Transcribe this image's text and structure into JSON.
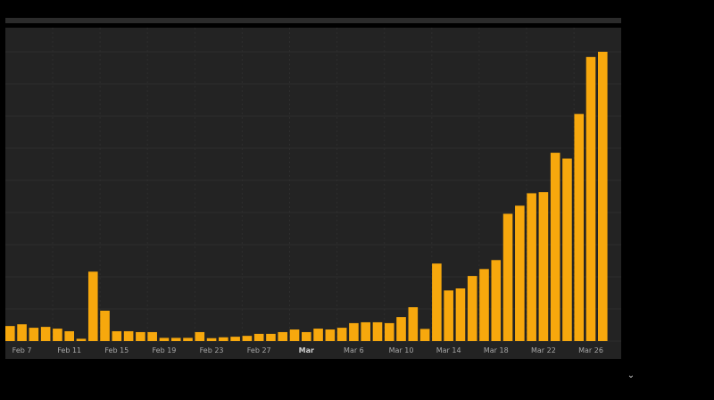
{
  "chart_data": {
    "type": "bar",
    "colors": {
      "bar": "#f7a80d",
      "background": "#232323",
      "grid": "#2e2e2e",
      "tick_text": "#a8a8a8"
    },
    "grid": true,
    "ylim": [
      0,
      100
    ],
    "x": [
      "Feb 6",
      "Feb 7",
      "Feb 8",
      "Feb 9",
      "Feb 10",
      "Feb 11",
      "Feb 12",
      "Feb 13",
      "Feb 14",
      "Feb 15",
      "Feb 16",
      "Feb 17",
      "Feb 18",
      "Feb 19",
      "Feb 20",
      "Feb 21",
      "Feb 22",
      "Feb 23",
      "Feb 24",
      "Feb 25",
      "Feb 26",
      "Feb 27",
      "Feb 28",
      "Feb 29",
      "Mar 1",
      "Mar 2",
      "Mar 3",
      "Mar 4",
      "Mar 5",
      "Mar 6",
      "Mar 7",
      "Mar 8",
      "Mar 9",
      "Mar 10",
      "Mar 11",
      "Mar 12",
      "Mar 13",
      "Mar 14",
      "Mar 15",
      "Mar 16",
      "Mar 17",
      "Mar 18",
      "Mar 19",
      "Mar 20",
      "Mar 21",
      "Mar 22",
      "Mar 23",
      "Mar 24",
      "Mar 25",
      "Mar 26",
      "Mar 27"
    ],
    "values": [
      5.2,
      5.8,
      4.6,
      4.9,
      4.3,
      3.4,
      0.8,
      24.0,
      10.5,
      3.4,
      3.4,
      3.1,
      3.1,
      1.1,
      1.1,
      1.1,
      3.1,
      1.0,
      1.3,
      1.5,
      1.8,
      2.5,
      2.5,
      3.1,
      4.0,
      3.1,
      4.3,
      4.0,
      4.6,
      6.2,
      6.5,
      6.5,
      6.2,
      8.3,
      11.7,
      4.2,
      26.8,
      17.5,
      18.2,
      22.5,
      24.9,
      28.0,
      44.0,
      46.8,
      51.1,
      51.5,
      65.1,
      63.1,
      78.5,
      98.2,
      100.0
    ],
    "tick_labels": [
      {
        "label": "Feb 7",
        "index": 1
      },
      {
        "label": "Feb 11",
        "index": 5
      },
      {
        "label": "Feb 15",
        "index": 9
      },
      {
        "label": "Feb 19",
        "index": 13
      },
      {
        "label": "Feb 23",
        "index": 17
      },
      {
        "label": "Feb 27",
        "index": 21
      },
      {
        "label": "Mar",
        "index": 25,
        "bold": true
      },
      {
        "label": "Mar 6",
        "index": 29
      },
      {
        "label": "Mar 10",
        "index": 33
      },
      {
        "label": "Mar 14",
        "index": 37
      },
      {
        "label": "Mar 18",
        "index": 41
      },
      {
        "label": "Mar 22",
        "index": 45
      },
      {
        "label": "Mar 26",
        "index": 49
      }
    ]
  },
  "icons": {
    "expand": "chevron-down-icon"
  },
  "controls": {
    "expand_glyph": "⌄"
  }
}
